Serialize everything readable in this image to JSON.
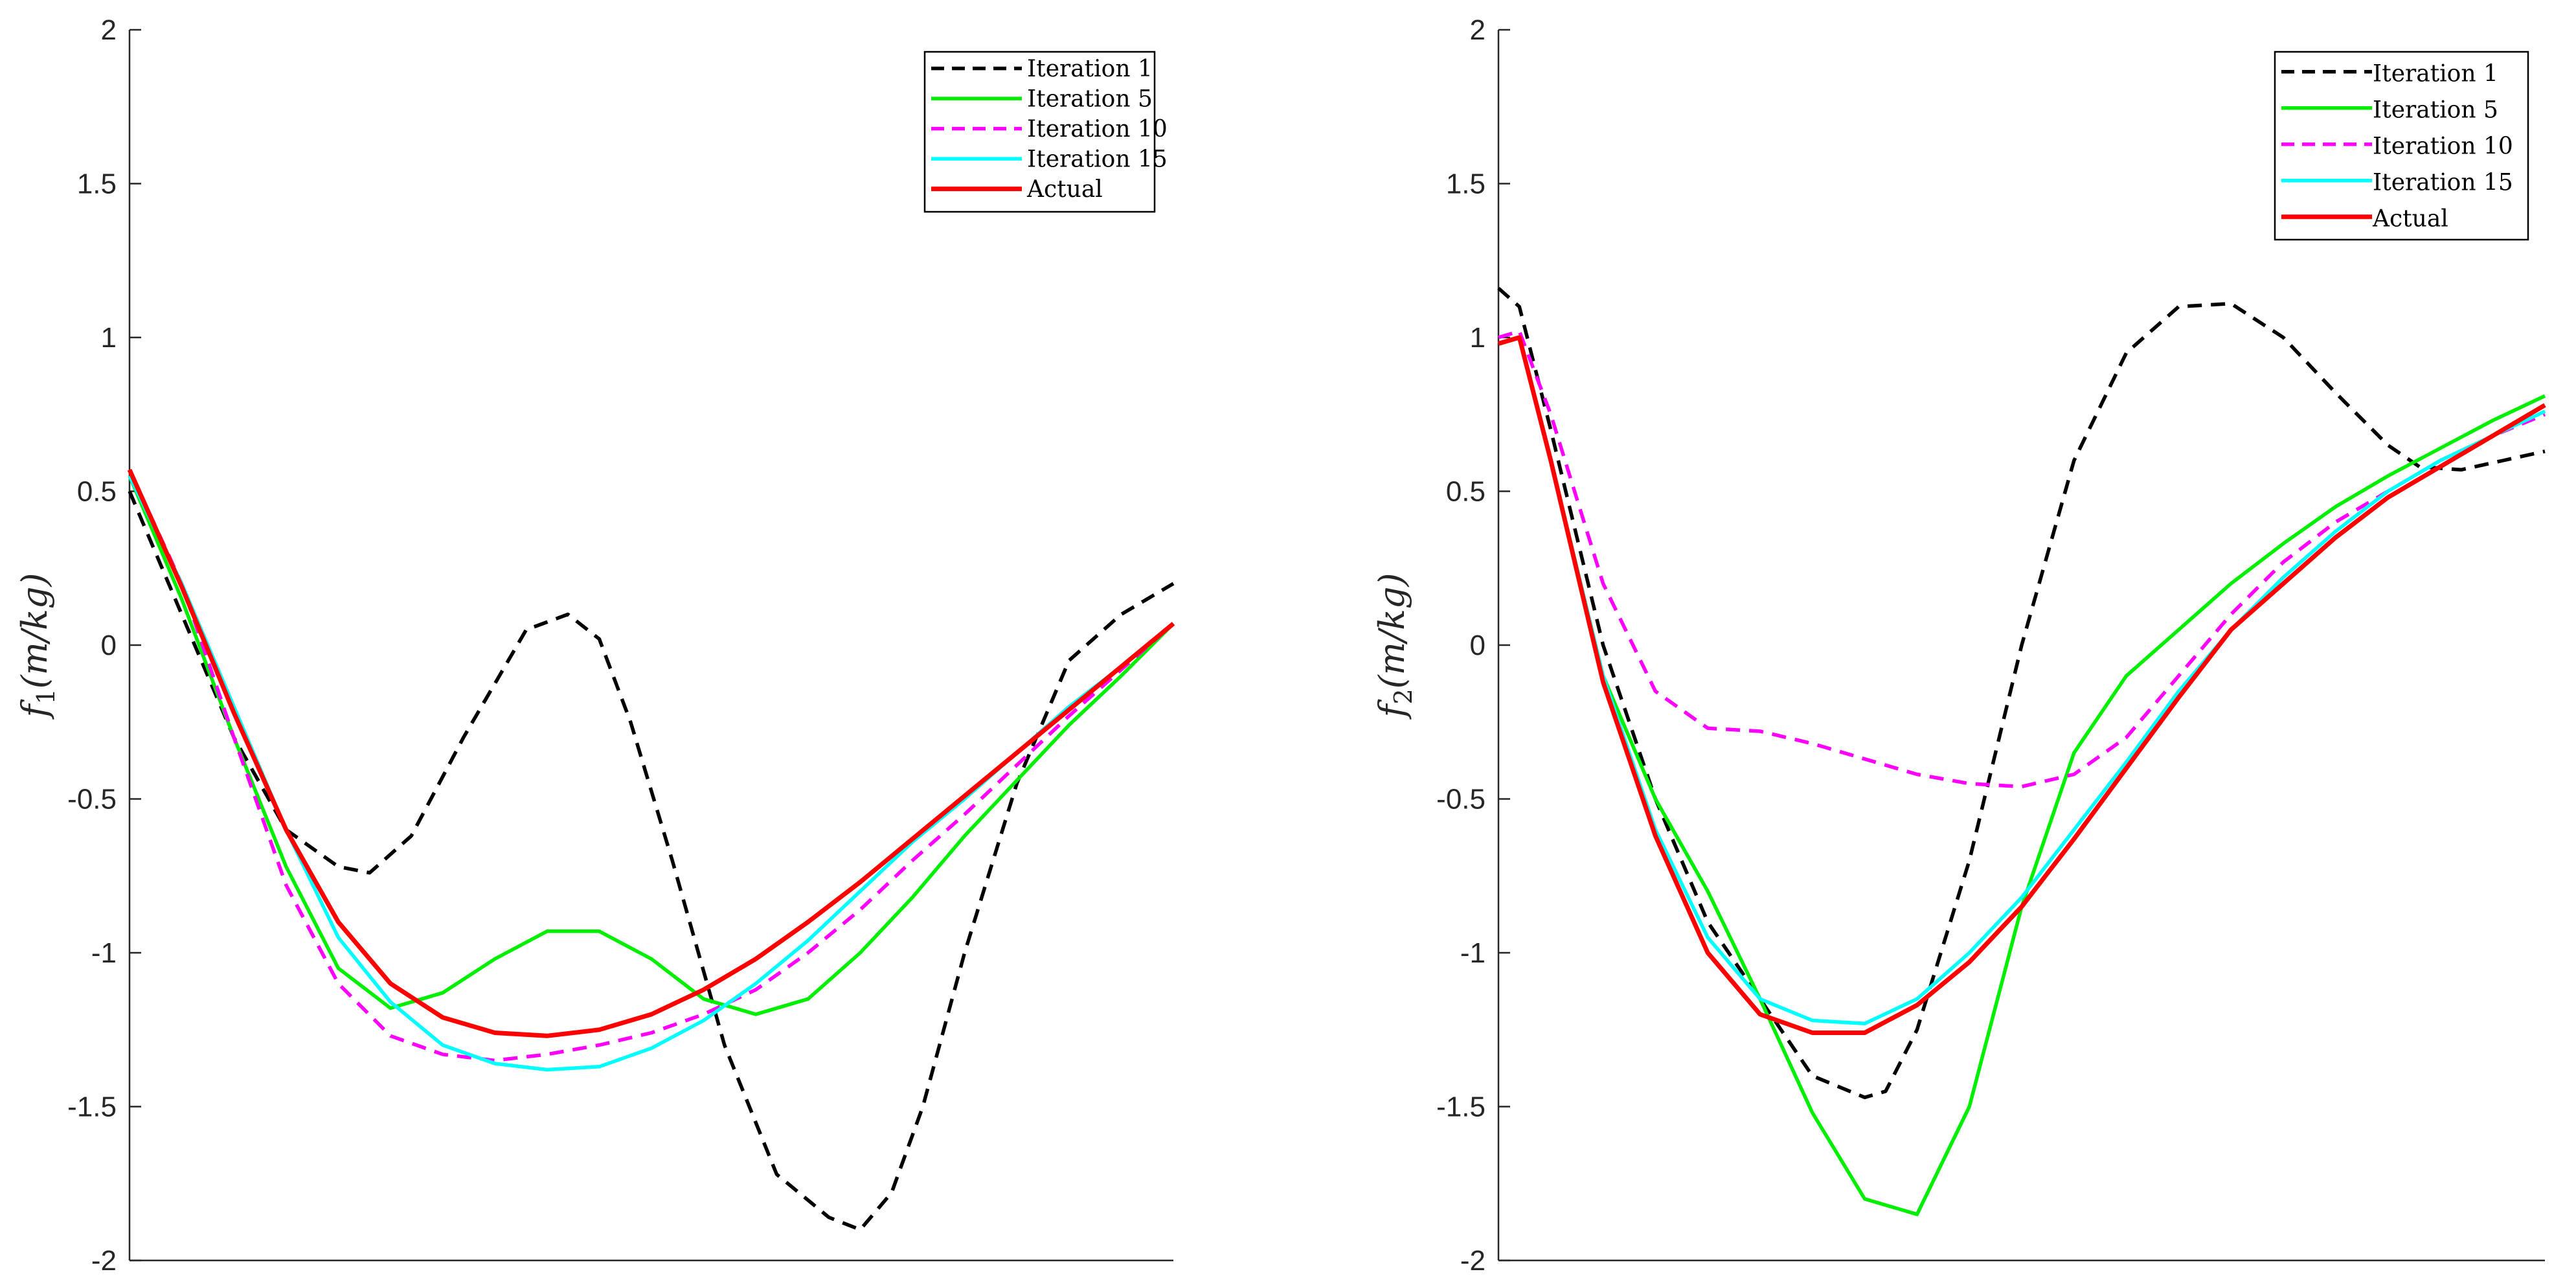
{
  "chart_data": [
    {
      "type": "line",
      "title": "",
      "xlabel": "",
      "ylabel_base": "f",
      "ylabel_sub": "1",
      "ylabel_rest": "(m/kg)",
      "xlim": [
        0,
        1
      ],
      "ylim": [
        -2,
        2
      ],
      "yticks": [
        -2,
        -1.5,
        -1,
        -0.5,
        0,
        0.5,
        1,
        1.5,
        2
      ],
      "ytick_labels": [
        "-2",
        "-1.5",
        "-1",
        "-0.5",
        "0",
        "0.5",
        "1",
        "1.5",
        "2"
      ],
      "grid": false,
      "legend_position": "top-right",
      "series": [
        {
          "name": "Iteration 1",
          "color": "#000000",
          "dash": "dashed",
          "x": [
            0,
            0.05,
            0.1,
            0.15,
            0.2,
            0.23,
            0.27,
            0.32,
            0.38,
            0.42,
            0.45,
            0.48,
            0.52,
            0.57,
            0.62,
            0.67,
            0.7,
            0.73,
            0.76,
            0.8,
            0.85,
            0.9,
            0.95,
            1.0
          ],
          "y": [
            0.5,
            0.1,
            -0.3,
            -0.6,
            -0.72,
            -0.74,
            -0.62,
            -0.3,
            0.05,
            0.1,
            0.02,
            -0.25,
            -0.7,
            -1.3,
            -1.72,
            -1.86,
            -1.9,
            -1.78,
            -1.5,
            -1.0,
            -0.45,
            -0.05,
            0.1,
            0.2
          ]
        },
        {
          "name": "Iteration 5",
          "color": "#00ee00",
          "dash": "solid",
          "x": [
            0,
            0.05,
            0.1,
            0.15,
            0.2,
            0.25,
            0.3,
            0.35,
            0.4,
            0.45,
            0.5,
            0.55,
            0.6,
            0.65,
            0.7,
            0.75,
            0.8,
            0.85,
            0.9,
            0.95,
            1.0
          ],
          "y": [
            0.55,
            0.15,
            -0.3,
            -0.72,
            -1.05,
            -1.18,
            -1.13,
            -1.02,
            -0.93,
            -0.93,
            -1.02,
            -1.15,
            -1.2,
            -1.15,
            -1.0,
            -0.82,
            -0.62,
            -0.44,
            -0.26,
            -0.1,
            0.07
          ]
        },
        {
          "name": "Iteration 10",
          "color": "#ff00ff",
          "dash": "dashed",
          "x": [
            0,
            0.05,
            0.1,
            0.15,
            0.2,
            0.25,
            0.3,
            0.35,
            0.4,
            0.45,
            0.5,
            0.55,
            0.6,
            0.65,
            0.7,
            0.75,
            0.8,
            0.85,
            0.9,
            0.95,
            1.0
          ],
          "y": [
            0.57,
            0.2,
            -0.3,
            -0.78,
            -1.1,
            -1.27,
            -1.33,
            -1.35,
            -1.33,
            -1.3,
            -1.26,
            -1.2,
            -1.12,
            -1.0,
            -0.86,
            -0.7,
            -0.55,
            -0.39,
            -0.23,
            -0.08,
            0.07
          ]
        },
        {
          "name": "Iteration 15",
          "color": "#00ffff",
          "dash": "solid",
          "x": [
            0,
            0.05,
            0.1,
            0.15,
            0.2,
            0.25,
            0.3,
            0.35,
            0.4,
            0.45,
            0.5,
            0.55,
            0.6,
            0.65,
            0.7,
            0.75,
            0.8,
            0.85,
            0.9,
            0.95,
            1.0
          ],
          "y": [
            0.55,
            0.2,
            -0.2,
            -0.6,
            -0.95,
            -1.16,
            -1.3,
            -1.36,
            -1.38,
            -1.37,
            -1.31,
            -1.22,
            -1.1,
            -0.96,
            -0.8,
            -0.64,
            -0.5,
            -0.35,
            -0.2,
            -0.07,
            0.07
          ]
        },
        {
          "name": "Actual",
          "color": "#ff0000",
          "dash": "solid",
          "x": [
            0,
            0.05,
            0.1,
            0.15,
            0.2,
            0.25,
            0.3,
            0.35,
            0.4,
            0.45,
            0.5,
            0.55,
            0.6,
            0.65,
            0.7,
            0.75,
            0.8,
            0.85,
            0.9,
            0.95,
            1.0
          ],
          "y": [
            0.57,
            0.19,
            -0.22,
            -0.6,
            -0.9,
            -1.1,
            -1.21,
            -1.26,
            -1.27,
            -1.25,
            -1.2,
            -1.12,
            -1.02,
            -0.9,
            -0.77,
            -0.63,
            -0.49,
            -0.35,
            -0.21,
            -0.07,
            0.07
          ]
        }
      ]
    },
    {
      "type": "line",
      "title": "",
      "xlabel": "",
      "ylabel_base": "f",
      "ylabel_sub": "2",
      "ylabel_rest": "(m/kg)",
      "xlim": [
        0,
        1
      ],
      "ylim": [
        -2,
        2
      ],
      "yticks": [
        -2,
        -1.5,
        -1,
        -0.5,
        0,
        0.5,
        1,
        1.5,
        2
      ],
      "ytick_labels": [
        "-2",
        "-1.5",
        "-1",
        "-0.5",
        "0",
        "0.5",
        "1",
        "1.5",
        "2"
      ],
      "grid": false,
      "legend_position": "top-right",
      "series": [
        {
          "name": "Iteration 1",
          "color": "#000000",
          "dash": "dashed",
          "x": [
            0,
            0.02,
            0.05,
            0.1,
            0.15,
            0.2,
            0.3,
            0.35,
            0.37,
            0.4,
            0.45,
            0.5,
            0.55,
            0.6,
            0.65,
            0.7,
            0.75,
            0.8,
            0.85,
            0.88,
            0.92,
            0.96,
            1.0
          ],
          "y": [
            1.16,
            1.1,
            0.7,
            0.0,
            -0.5,
            -0.9,
            -1.4,
            -1.47,
            -1.45,
            -1.25,
            -0.7,
            0.0,
            0.6,
            0.95,
            1.1,
            1.11,
            1.0,
            0.82,
            0.65,
            0.58,
            0.57,
            0.6,
            0.63
          ]
        },
        {
          "name": "Iteration 5",
          "color": "#00ee00",
          "dash": "solid",
          "x": [
            0,
            0.02,
            0.05,
            0.1,
            0.15,
            0.2,
            0.25,
            0.3,
            0.35,
            0.4,
            0.45,
            0.5,
            0.55,
            0.6,
            0.65,
            0.7,
            0.75,
            0.8,
            0.85,
            0.9,
            0.95,
            1.0
          ],
          "y": [
            0.98,
            1.0,
            0.6,
            -0.1,
            -0.5,
            -0.8,
            -1.15,
            -1.52,
            -1.8,
            -1.85,
            -1.5,
            -0.85,
            -0.35,
            -0.1,
            0.05,
            0.2,
            0.33,
            0.45,
            0.55,
            0.64,
            0.73,
            0.81
          ]
        },
        {
          "name": "Iteration 10",
          "color": "#ff00ff",
          "dash": "dashed",
          "x": [
            0,
            0.02,
            0.05,
            0.1,
            0.15,
            0.2,
            0.25,
            0.3,
            0.35,
            0.4,
            0.45,
            0.5,
            0.55,
            0.6,
            0.65,
            0.7,
            0.75,
            0.8,
            0.85,
            0.9,
            0.95,
            1.0
          ],
          "y": [
            1.0,
            1.02,
            0.75,
            0.2,
            -0.15,
            -0.27,
            -0.28,
            -0.32,
            -0.37,
            -0.42,
            -0.45,
            -0.46,
            -0.42,
            -0.3,
            -0.1,
            0.1,
            0.27,
            0.4,
            0.5,
            0.6,
            0.68,
            0.75
          ]
        },
        {
          "name": "Iteration 15",
          "color": "#00ffff",
          "dash": "solid",
          "x": [
            0,
            0.02,
            0.05,
            0.1,
            0.15,
            0.2,
            0.25,
            0.3,
            0.35,
            0.4,
            0.45,
            0.5,
            0.55,
            0.6,
            0.65,
            0.7,
            0.75,
            0.8,
            0.85,
            0.9,
            0.95,
            1.0
          ],
          "y": [
            0.98,
            1.0,
            0.6,
            -0.1,
            -0.6,
            -0.95,
            -1.15,
            -1.22,
            -1.23,
            -1.15,
            -1.0,
            -0.82,
            -0.6,
            -0.38,
            -0.15,
            0.05,
            0.22,
            0.37,
            0.5,
            0.6,
            0.68,
            0.76
          ]
        },
        {
          "name": "Actual",
          "color": "#ff0000",
          "dash": "solid",
          "x": [
            0,
            0.02,
            0.05,
            0.1,
            0.15,
            0.2,
            0.25,
            0.3,
            0.35,
            0.4,
            0.45,
            0.5,
            0.55,
            0.6,
            0.65,
            0.7,
            0.75,
            0.8,
            0.85,
            0.9,
            0.95,
            1.0
          ],
          "y": [
            0.98,
            1.0,
            0.6,
            -0.12,
            -0.62,
            -1.0,
            -1.2,
            -1.26,
            -1.26,
            -1.17,
            -1.03,
            -0.85,
            -0.63,
            -0.4,
            -0.17,
            0.05,
            0.2,
            0.35,
            0.48,
            0.58,
            0.68,
            0.78
          ]
        }
      ]
    }
  ]
}
